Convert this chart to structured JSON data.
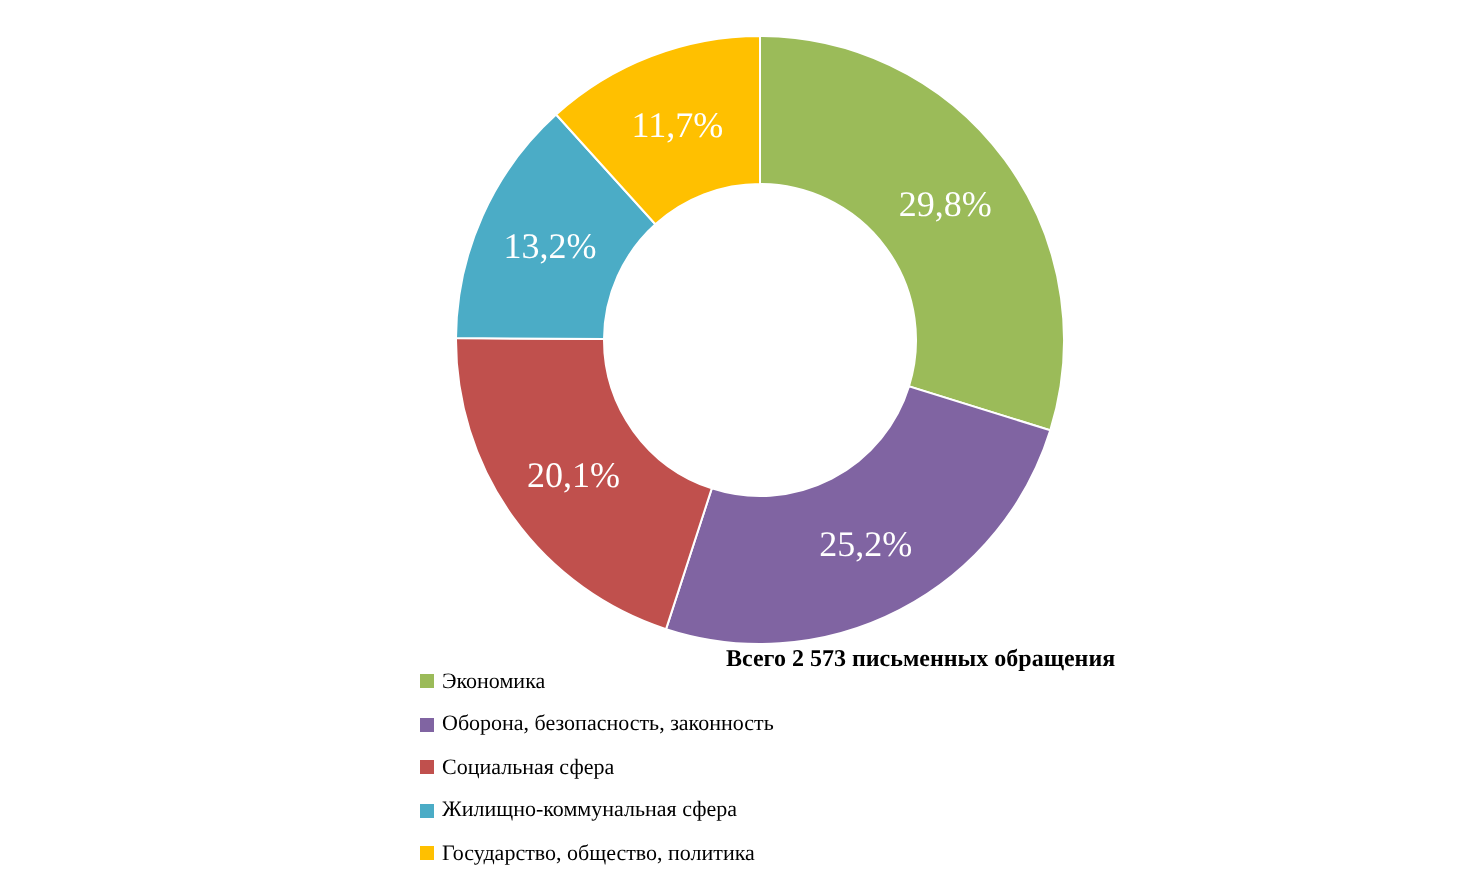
{
  "chart_data": {
    "type": "donut",
    "categories": [
      "Экономика",
      "Оборона, безопасность, законность",
      "Социальная сфера",
      "Жилищно-коммунальная сфера",
      "Государство, общество, политика"
    ],
    "values": [
      29.8,
      25.2,
      20.1,
      13.2,
      11.7
    ],
    "value_labels": [
      "29,8%",
      "25,2%",
      "20,1%",
      "13,2%",
      "11,7%"
    ],
    "colors": [
      "#9bbb59",
      "#8064a2",
      "#c0504d",
      "#4bacc6",
      "#ffc000"
    ],
    "legend": "bottom left",
    "annotations": [
      "Всего 2 573 письменных обращения"
    ]
  }
}
